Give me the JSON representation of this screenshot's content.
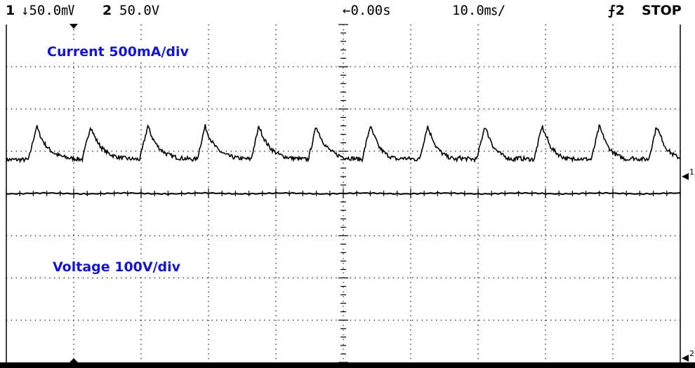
{
  "status_bar": {
    "ch1_number": "1",
    "ch1_scale": "↓50.0㎷",
    "ch2_number": "2",
    "ch2_scale": "50.0V",
    "time_offset": "←0.00s",
    "time_scale": "10.0㎳/",
    "trigger_source": "⨍2",
    "run_state": "STOP"
  },
  "labels": {
    "current": "Current 500mA/div",
    "voltage": "Voltage 100V/div"
  },
  "chart_data": {
    "type": "line",
    "grid": true,
    "x_range_ms": [
      -50,
      50
    ],
    "y_range_div": [
      -4,
      4
    ],
    "series": [
      {
        "name": "Current 500mA/div",
        "channel": 1,
        "units": "divisions",
        "baseline_div": 0.8,
        "pulse_peak_div": 1.6,
        "pulse_times_ms": [
          -45.5,
          -37.5,
          -29,
          -20.5,
          -12.5,
          -4,
          4,
          12.5,
          21,
          29.5,
          38,
          46.5
        ]
      },
      {
        "name": "Voltage 100V/div",
        "channel": 2,
        "units": "divisions",
        "level_div": 0.0
      }
    ],
    "colors": {
      "trace": "#000000",
      "grid": "#000000",
      "label": "#1414d2"
    }
  }
}
